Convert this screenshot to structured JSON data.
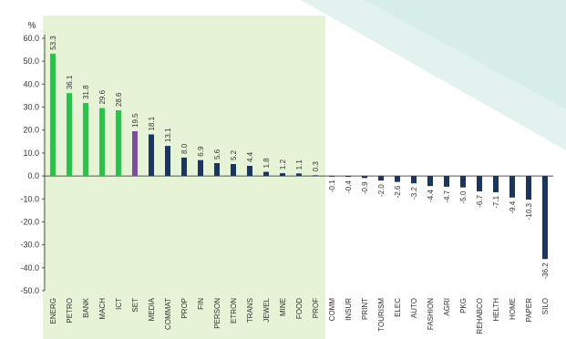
{
  "chart_data": {
    "type": "bar",
    "ylabel": "%",
    "ylim": [
      -50,
      60
    ],
    "yticks": [
      "60.0",
      "50.0",
      "40.0",
      "30.0",
      "20.0",
      "10.0",
      "0.0",
      "-10.0",
      "-20.0",
      "-30.0",
      "-40.0",
      "-50.0"
    ],
    "categories": [
      "ENERG",
      "PETRO",
      "BANK",
      "MACH",
      "ICT",
      "SET",
      "MEDIA",
      "COMMAT",
      "PROP",
      "FIN",
      "PERSON",
      "ETRON",
      "TRANS",
      "JEWEL",
      "MINE",
      "FOOD",
      "PROF",
      "COMM",
      "INSUR",
      "PRINT",
      "TOURISM",
      "ELEC",
      "AUTO",
      "FASHION",
      "AGRI",
      "PKG",
      "REHABCO",
      "HELTH",
      "HOME",
      "PAPER",
      "SILO"
    ],
    "values": [
      53.3,
      36.1,
      31.8,
      29.6,
      28.6,
      19.5,
      18.1,
      13.1,
      8.0,
      6.9,
      5.6,
      5.2,
      4.4,
      1.8,
      1.2,
      1.1,
      0.3,
      -0.1,
      -0.4,
      -0.9,
      -2.0,
      -2.6,
      -3.2,
      -4.4,
      -4.7,
      -5.0,
      -6.7,
      -7.1,
      -9.4,
      -10.3,
      -36.2
    ],
    "value_labels": [
      "53.3",
      "36.1",
      "31.8",
      "29.6",
      "28.6",
      "19.5",
      "18.1",
      "13.1",
      "8.0",
      "6.9",
      "5.6",
      "5.2",
      "4.4",
      "1.8",
      "1.2",
      "1.1",
      "0.3",
      "-0.1",
      "-0.4",
      "-0.9",
      "-2.0",
      "-2.6",
      "-3.2",
      "-4.4",
      "-4.7",
      "-5.0",
      "-6.7",
      "-7.1",
      "-9.4",
      "-10.3",
      "-36.2"
    ],
    "highlight_range": [
      "ENERG",
      "PROF"
    ],
    "colors": {
      "top5": "#2cc14a",
      "set_index": "#7b4fa0",
      "other": "#1c355e",
      "highlight_bg": "#e6f3d6",
      "axis": "#555555",
      "text": "#333333"
    },
    "grid": false,
    "legend": "none"
  }
}
